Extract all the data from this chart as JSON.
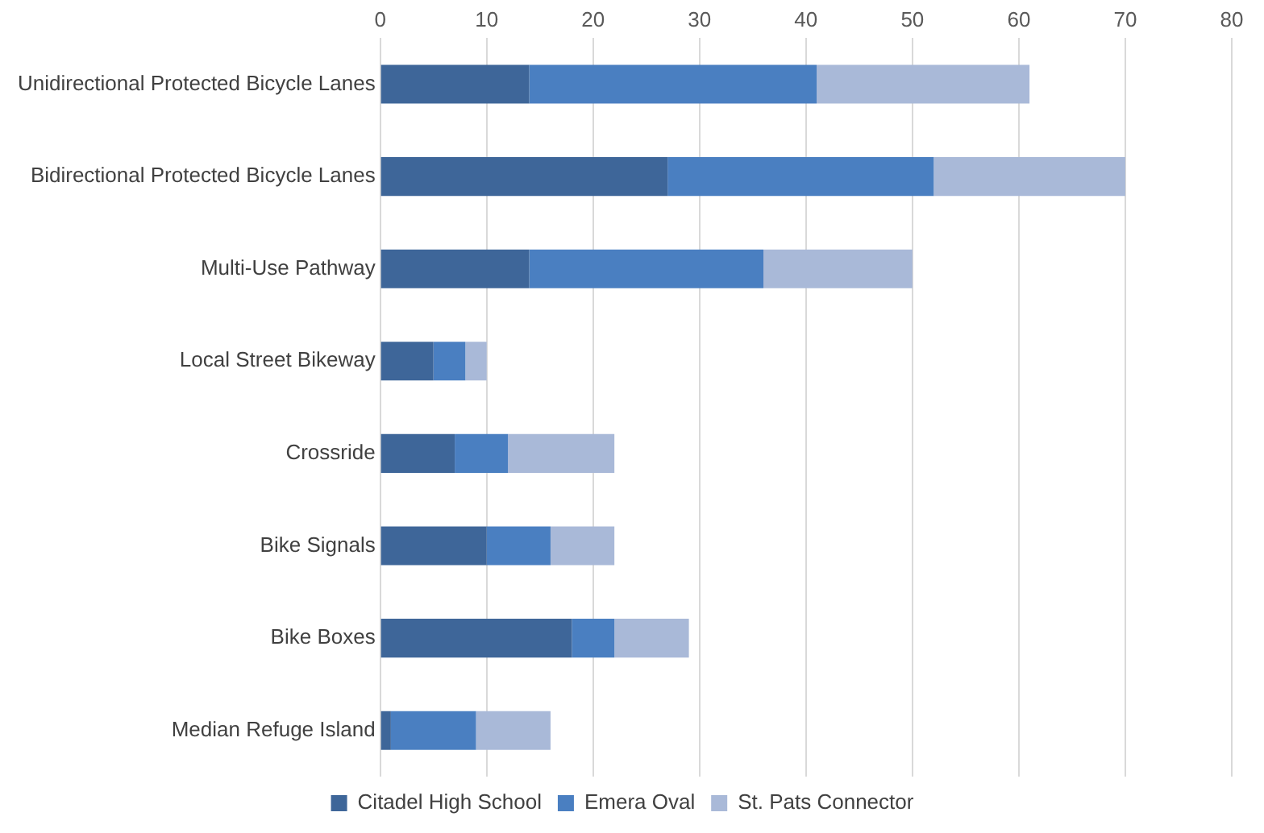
{
  "chart_data": {
    "type": "bar",
    "orientation": "horizontal",
    "stacked": true,
    "categories": [
      "Unidirectional Protected Bicycle Lanes",
      "Bidirectional Protected Bicycle Lanes",
      "Multi-Use Pathway",
      "Local Street Bikeway",
      "Crossride",
      "Bike Signals",
      "Bike Boxes",
      "Median Refuge Island"
    ],
    "series": [
      {
        "name": "Citadel High School",
        "color": "#3e6699",
        "values": [
          14,
          27,
          14,
          5,
          7,
          10,
          18,
          1
        ]
      },
      {
        "name": "Emera Oval",
        "color": "#4a7fc1",
        "values": [
          27,
          25,
          22,
          3,
          5,
          6,
          4,
          8
        ]
      },
      {
        "name": "St. Pats Connector",
        "color": "#a9b9d8",
        "values": [
          20,
          18,
          14,
          2,
          10,
          6,
          7,
          7
        ]
      }
    ],
    "xlim": [
      0,
      80
    ],
    "xticks": [
      0,
      10,
      20,
      30,
      40,
      50,
      60,
      70,
      80
    ],
    "grid": "x",
    "legend": "bottom"
  }
}
